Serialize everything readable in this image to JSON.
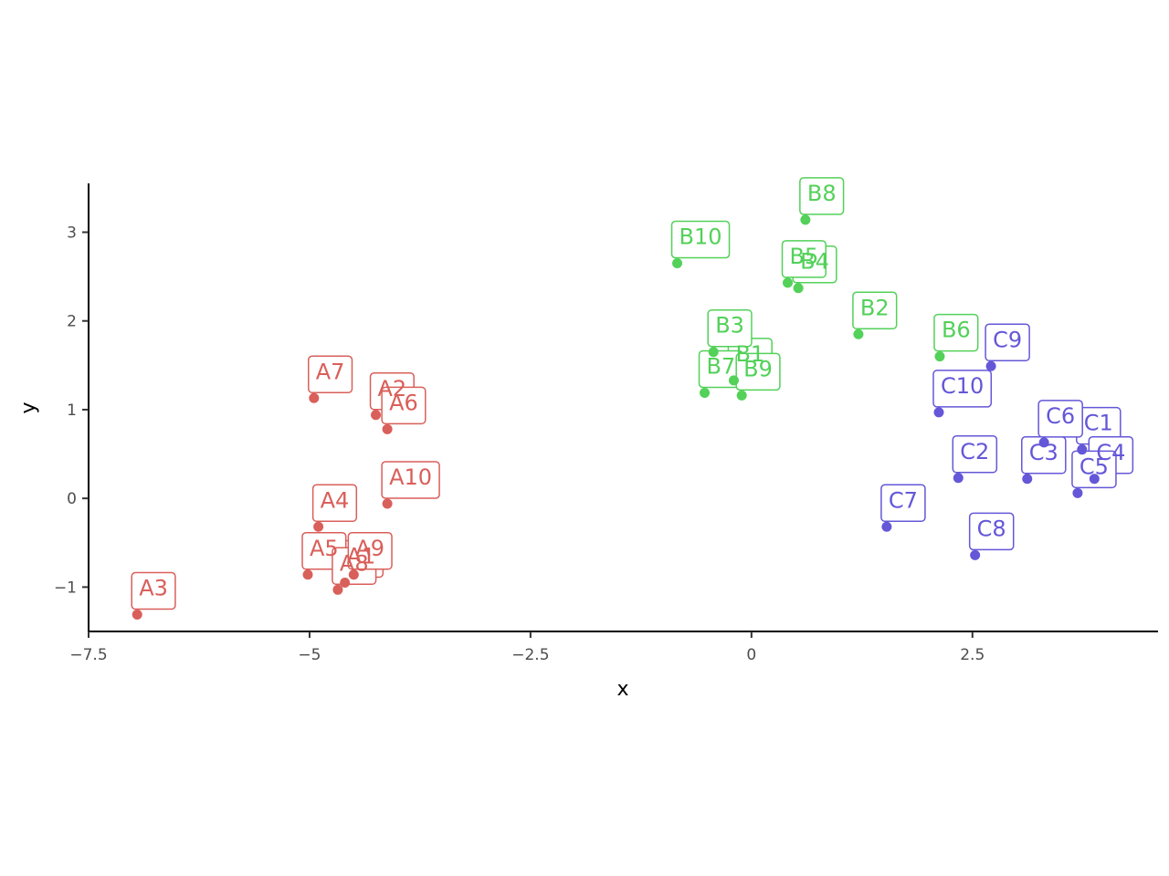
{
  "chart_data": {
    "type": "scatter",
    "title": "",
    "xlabel": "x",
    "ylabel": "y",
    "xlim": [
      -7.5,
      4.6
    ],
    "ylim": [
      -1.5,
      3.55
    ],
    "xticks": [
      -7.5,
      -5,
      -2.5,
      0,
      2.5
    ],
    "xtick_labels": [
      "−7.5",
      "−5",
      "−2.5",
      "0",
      "2.5"
    ],
    "yticks": [
      -1,
      0,
      1,
      2,
      3
    ],
    "ytick_labels": [
      "−1",
      "0",
      "1",
      "2",
      "3"
    ],
    "grid": false,
    "legend": "none",
    "series": [
      {
        "group": "A",
        "color": "#d95f5a",
        "points": [
          {
            "label": "A1",
            "x": -4.6,
            "y": -0.95
          },
          {
            "label": "A2",
            "x": -4.25,
            "y": 0.94
          },
          {
            "label": "A3",
            "x": -6.95,
            "y": -1.31
          },
          {
            "label": "A4",
            "x": -4.9,
            "y": -0.32
          },
          {
            "label": "A5",
            "x": -5.02,
            "y": -0.86
          },
          {
            "label": "A6",
            "x": -4.12,
            "y": 0.78
          },
          {
            "label": "A7",
            "x": -4.95,
            "y": 1.13
          },
          {
            "label": "A8",
            "x": -4.68,
            "y": -1.03
          },
          {
            "label": "A9",
            "x": -4.5,
            "y": -0.86
          },
          {
            "label": "A10",
            "x": -4.12,
            "y": -0.06
          }
        ]
      },
      {
        "group": "B",
        "color": "#53d159",
        "points": [
          {
            "label": "B1",
            "x": -0.2,
            "y": 1.33
          },
          {
            "label": "B2",
            "x": 1.21,
            "y": 1.85
          },
          {
            "label": "B3",
            "x": -0.43,
            "y": 1.65
          },
          {
            "label": "B4",
            "x": 0.53,
            "y": 2.37
          },
          {
            "label": "B5",
            "x": 0.41,
            "y": 2.43
          },
          {
            "label": "B6",
            "x": 2.13,
            "y": 1.6
          },
          {
            "label": "B7",
            "x": -0.53,
            "y": 1.19
          },
          {
            "label": "B8",
            "x": 0.61,
            "y": 3.14
          },
          {
            "label": "B9",
            "x": -0.11,
            "y": 1.16
          },
          {
            "label": "B10",
            "x": -0.84,
            "y": 2.65
          }
        ]
      },
      {
        "group": "C",
        "color": "#6457d8",
        "points": [
          {
            "label": "C1",
            "x": 3.74,
            "y": 0.55
          },
          {
            "label": "C2",
            "x": 2.34,
            "y": 0.23
          },
          {
            "label": "C3",
            "x": 3.12,
            "y": 0.22
          },
          {
            "label": "C4",
            "x": 3.88,
            "y": 0.22
          },
          {
            "label": "C5",
            "x": 3.69,
            "y": 0.06
          },
          {
            "label": "C6",
            "x": 3.31,
            "y": 0.63
          },
          {
            "label": "C7",
            "x": 1.53,
            "y": -0.32
          },
          {
            "label": "C8",
            "x": 2.53,
            "y": -0.64
          },
          {
            "label": "C9",
            "x": 2.71,
            "y": 1.49
          },
          {
            "label": "C10",
            "x": 2.12,
            "y": 0.97
          }
        ]
      }
    ]
  }
}
